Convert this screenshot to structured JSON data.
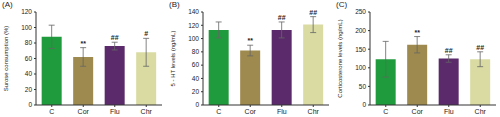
{
  "chart_data": [
    {
      "type": "bar",
      "title": "(A)",
      "y_label": "Surose consumption (%)",
      "categories": [
        "C",
        "Cor",
        "Flu",
        "Chr"
      ],
      "values": [
        88,
        62,
        76,
        68
      ],
      "errors": [
        15,
        12,
        5,
        18
      ],
      "colors": [
        "#1f9a3c",
        "#9e8a4e",
        "#5b2a6b",
        "#d9dba2"
      ],
      "ylim": [
        0,
        120
      ],
      "yticks": [
        0,
        20,
        40,
        60,
        80,
        100,
        120
      ],
      "annotations": [
        {
          "category": "Cor",
          "text": "**"
        },
        {
          "category": "Flu",
          "text": "##"
        },
        {
          "category": "Chr",
          "text": "#"
        }
      ]
    },
    {
      "type": "bar",
      "title": "(B)",
      "y_label": "5 - HT levels (ng/mL)",
      "categories": [
        "C",
        "Cor",
        "Flu",
        "Chr"
      ],
      "values": [
        113,
        82,
        113,
        121
      ],
      "errors": [
        12,
        8,
        12,
        12
      ],
      "colors": [
        "#1f9a3c",
        "#9e8a4e",
        "#5b2a6b",
        "#d9dba2"
      ],
      "ylim": [
        0,
        140
      ],
      "yticks": [
        0,
        20,
        40,
        60,
        80,
        100,
        120,
        140
      ],
      "annotations": [
        {
          "category": "Cor",
          "text": "**"
        },
        {
          "category": "Flu",
          "text": "##"
        },
        {
          "category": "Chr",
          "text": "##"
        }
      ]
    },
    {
      "type": "bar",
      "title": "(C)",
      "y_label": "Corticosterone levels (ng/mL)",
      "categories": [
        "C",
        "Cor",
        "Flu",
        "Chr"
      ],
      "values": [
        123,
        162,
        125,
        123
      ],
      "errors": [
        48,
        22,
        10,
        20
      ],
      "colors": [
        "#1f9a3c",
        "#9e8a4e",
        "#5b2a6b",
        "#d9dba2"
      ],
      "ylim": [
        0,
        250
      ],
      "yticks": [
        0,
        50,
        100,
        150,
        200,
        250
      ],
      "annotations": [
        {
          "category": "Cor",
          "text": "**"
        },
        {
          "category": "Flu",
          "text": "##"
        },
        {
          "category": "Chr",
          "text": "##"
        }
      ]
    }
  ]
}
